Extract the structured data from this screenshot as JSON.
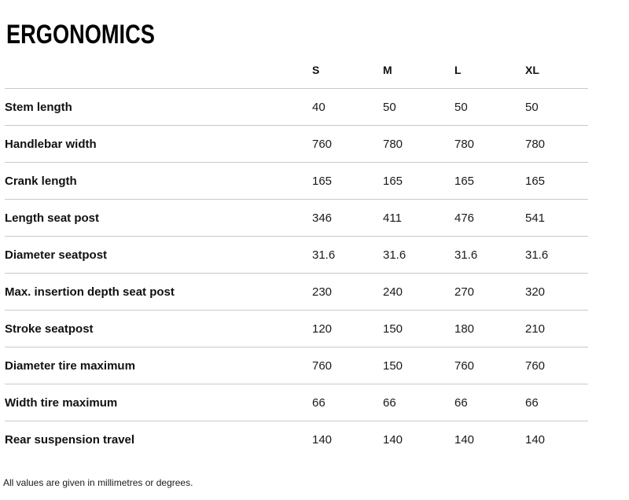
{
  "page": {
    "title": "ERGONOMICS",
    "footnote": "All values are given in millimetres or degrees."
  },
  "table": {
    "size_columns": [
      "S",
      "M",
      "L",
      "XL"
    ],
    "rows": [
      {
        "label": "Stem length",
        "values": [
          "40",
          "50",
          "50",
          "50"
        ]
      },
      {
        "label": "Handlebar width",
        "values": [
          "760",
          "780",
          "780",
          "780"
        ]
      },
      {
        "label": "Crank length",
        "values": [
          "165",
          "165",
          "165",
          "165"
        ]
      },
      {
        "label": "Length seat post",
        "values": [
          "346",
          "411",
          "476",
          "541"
        ]
      },
      {
        "label": "Diameter seatpost",
        "values": [
          "31.6",
          "31.6",
          "31.6",
          "31.6"
        ]
      },
      {
        "label": "Max. insertion depth seat post",
        "values": [
          "230",
          "240",
          "270",
          "320"
        ]
      },
      {
        "label": "Stroke seatpost",
        "values": [
          "120",
          "150",
          "180",
          "210"
        ]
      },
      {
        "label": "Diameter tire maximum",
        "values": [
          "760",
          "150",
          "760",
          "760"
        ]
      },
      {
        "label": "Width tire maximum",
        "values": [
          "66",
          "66",
          "66",
          "66"
        ]
      },
      {
        "label": "Rear suspension travel",
        "values": [
          "140",
          "140",
          "140",
          "140"
        ]
      }
    ]
  },
  "colors": {
    "background": "#ffffff",
    "title_text": "#000000",
    "body_text": "#1a1a1a",
    "divider": "#c9c9c9"
  },
  "chart_data": {
    "type": "table",
    "title": "ERGONOMICS",
    "columns": [
      "S",
      "M",
      "L",
      "XL"
    ],
    "row_labels": [
      "Stem length",
      "Handlebar width",
      "Crank length",
      "Length seat post",
      "Diameter seatpost",
      "Max. insertion depth seat post",
      "Stroke seatpost",
      "Diameter tire maximum",
      "Width tire maximum",
      "Rear suspension travel"
    ],
    "series": [
      {
        "name": "S",
        "values": [
          40,
          760,
          165,
          346,
          31.6,
          230,
          120,
          760,
          66,
          140
        ]
      },
      {
        "name": "M",
        "values": [
          50,
          780,
          165,
          411,
          31.6,
          240,
          150,
          150,
          66,
          140
        ]
      },
      {
        "name": "L",
        "values": [
          50,
          780,
          165,
          476,
          31.6,
          270,
          180,
          760,
          66,
          140
        ]
      },
      {
        "name": "XL",
        "values": [
          50,
          780,
          165,
          541,
          31.6,
          320,
          210,
          760,
          66,
          140
        ]
      }
    ],
    "units_note": "All values are given in millimetres or degrees."
  }
}
